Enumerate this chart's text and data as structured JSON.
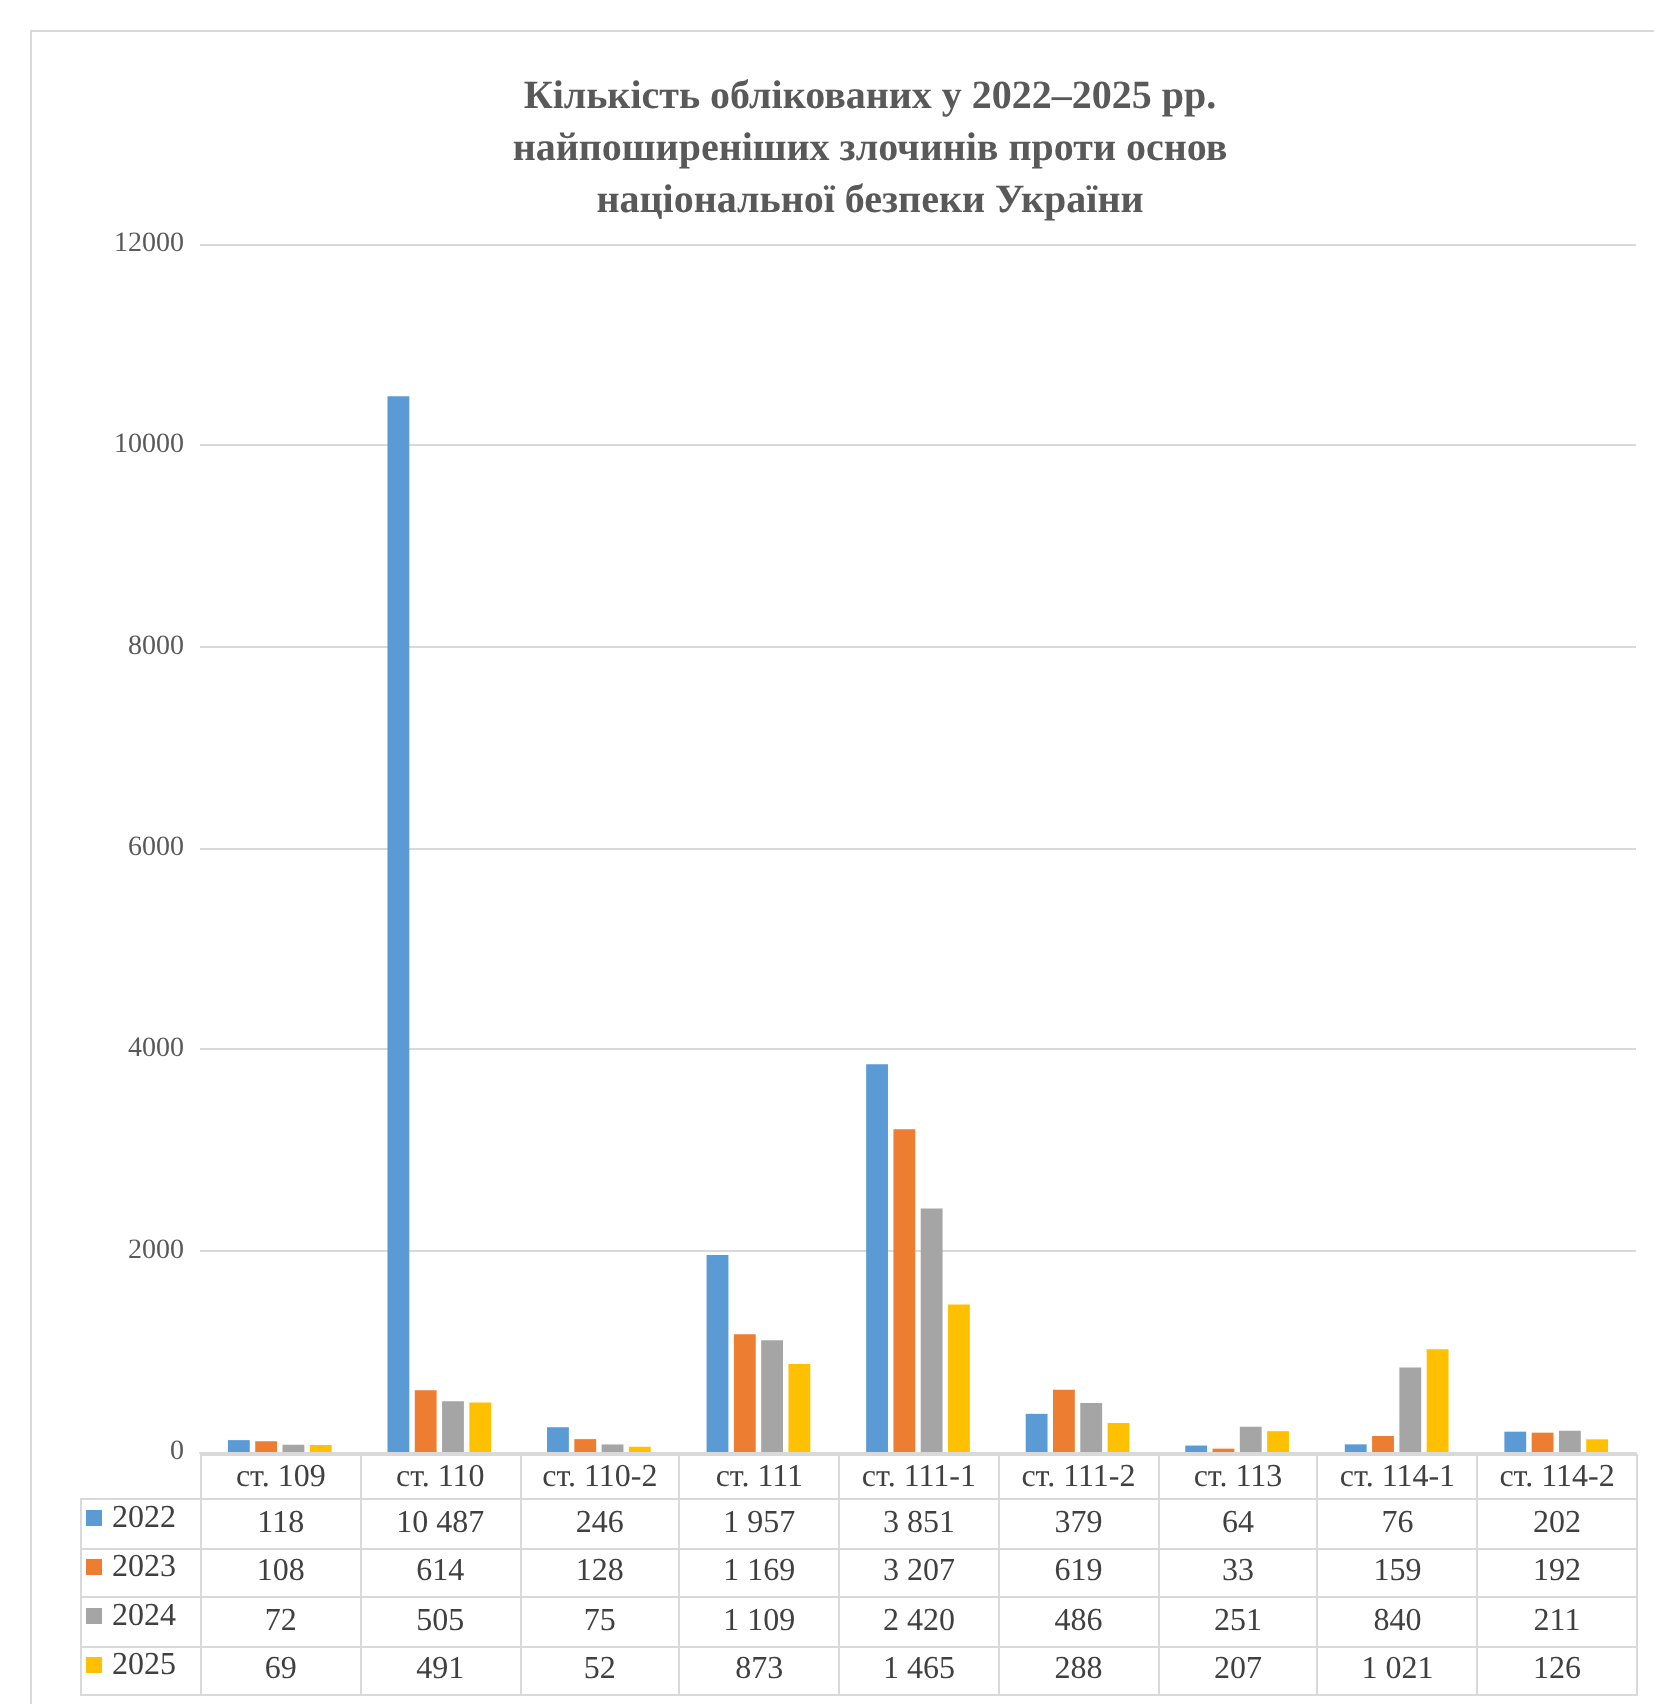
{
  "chart_data": {
    "type": "bar",
    "title": "Кількість облікованих у 2022–2025 рр.\nнайпоширеніших злочинів проти основ\nнаціональної безпеки України",
    "categories": [
      "ст. 109",
      "ст. 110",
      "ст. 110-2",
      "ст. 111",
      "ст. 111-1",
      "ст. 111-2",
      "ст. 113",
      "ст. 114-1",
      "ст. 114-2"
    ],
    "series": [
      {
        "name": "2022",
        "color": "#5b9bd5",
        "values": [
          118,
          10487,
          246,
          1957,
          3851,
          379,
          64,
          76,
          202
        ],
        "value_labels": [
          "118",
          "10 487",
          "246",
          "1 957",
          "3 851",
          "379",
          "64",
          "76",
          "202"
        ]
      },
      {
        "name": "2023",
        "color": "#ed7d31",
        "values": [
          108,
          614,
          128,
          1169,
          3207,
          619,
          33,
          159,
          192
        ],
        "value_labels": [
          "108",
          "614",
          "128",
          "1 169",
          "3 207",
          "619",
          "33",
          "159",
          "192"
        ]
      },
      {
        "name": "2024",
        "color": "#a5a5a5",
        "values": [
          72,
          505,
          75,
          1109,
          2420,
          486,
          251,
          840,
          211
        ],
        "value_labels": [
          "72",
          "505",
          "75",
          "1 109",
          "2 420",
          "486",
          "251",
          "840",
          "211"
        ]
      },
      {
        "name": "2025",
        "color": "#ffc000",
        "values": [
          69,
          491,
          52,
          873,
          1465,
          288,
          207,
          1021,
          126
        ],
        "value_labels": [
          "69",
          "491",
          "52",
          "873",
          "1 465",
          "288",
          "207",
          "1 021",
          "126"
        ]
      }
    ],
    "ylim": [
      0,
      12000
    ],
    "yticks": [
      0,
      2000,
      4000,
      6000,
      8000,
      10000,
      12000
    ],
    "grid": "y",
    "legend": "bottom left"
  }
}
